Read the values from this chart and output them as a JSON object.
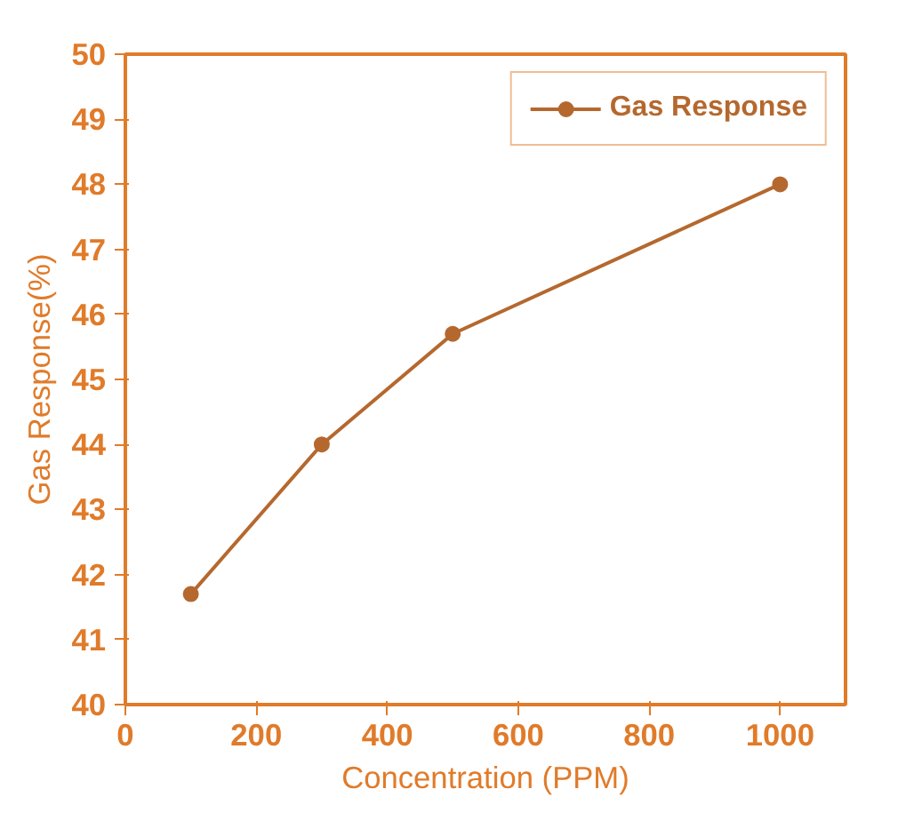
{
  "chart_data": {
    "type": "line",
    "xlabel": "Concentration (PPM)",
    "ylabel": "Gas Response(%)",
    "x": [
      100,
      300,
      500,
      1000
    ],
    "series": [
      {
        "name": "Gas Response",
        "color": "#b5682e",
        "values": [
          41.7,
          44.0,
          45.7,
          48.0
        ]
      }
    ],
    "xlim": [
      0,
      1100
    ],
    "xticks": [
      0,
      200,
      400,
      600,
      800,
      1000
    ],
    "ylim": [
      40,
      50
    ],
    "yticks": [
      40,
      41,
      42,
      43,
      44,
      45,
      46,
      47,
      48,
      49,
      50
    ],
    "marker": "circle",
    "line_style": "solid",
    "legend": "top right",
    "grid": false
  }
}
